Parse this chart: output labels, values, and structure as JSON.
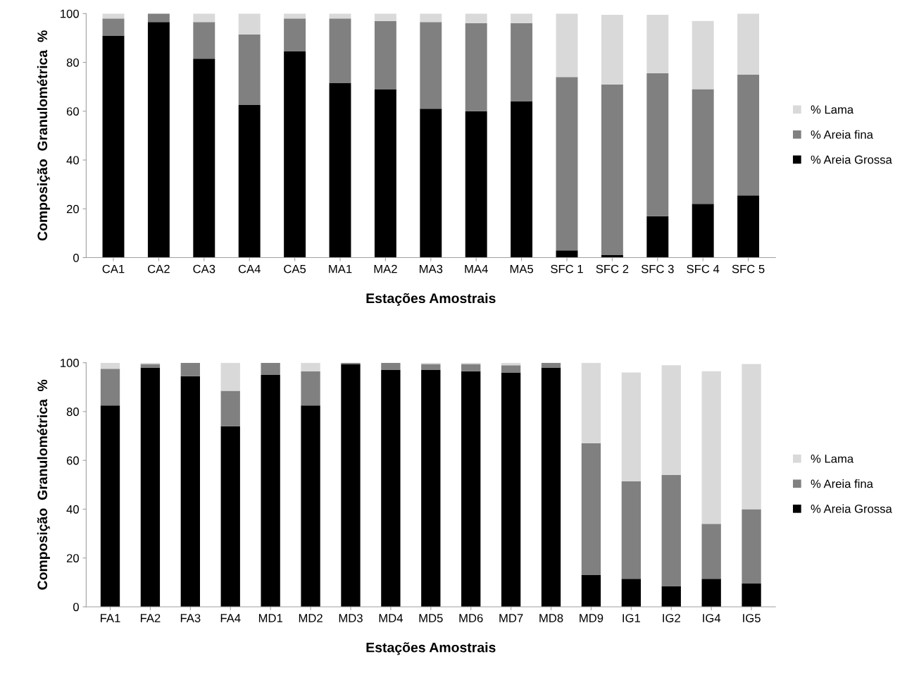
{
  "chart_data": [
    {
      "type": "bar",
      "stacked": true,
      "xlabel": "Estações Amostrais",
      "ylabel": "Composição  Granulométrica  %",
      "categories": [
        "CA1",
        "CA2",
        "CA3",
        "CA4",
        "CA5",
        "MA1",
        "MA2",
        "MA3",
        "MA4",
        "MA5",
        "SFC 1",
        "SFC 2",
        "SFC 3",
        "SFC 4",
        "SFC 5"
      ],
      "ylim": [
        0,
        100
      ],
      "yticks": [
        0,
        20,
        40,
        60,
        80,
        100
      ],
      "grid": false,
      "legend": "right",
      "series": [
        {
          "name": "% Areia Grossa",
          "color": "#000000",
          "values": [
            91,
            96.5,
            81.5,
            62.5,
            84.5,
            71.5,
            69,
            61,
            60,
            64,
            3,
            1,
            17,
            22,
            25.5
          ]
        },
        {
          "name": "% Areia fina",
          "color": "#808080",
          "values": [
            7,
            3.5,
            15,
            29,
            13.5,
            26.5,
            28,
            35.5,
            36,
            32,
            71,
            70,
            58.5,
            47,
            49.5
          ]
        },
        {
          "name": "% Lama",
          "color": "#d9d9d9",
          "values": [
            2,
            0,
            3.5,
            8.5,
            2,
            2,
            3,
            3.5,
            4,
            4,
            26,
            28.5,
            24,
            28,
            25
          ]
        }
      ]
    },
    {
      "type": "bar",
      "stacked": true,
      "xlabel": "Estações Amostrais",
      "ylabel": "Composição  Granulométrica  %",
      "categories": [
        "FA1",
        "FA2",
        "FA3",
        "FA4",
        "MD1",
        "MD2",
        "MD3",
        "MD4",
        "MD5",
        "MD6",
        "MD7",
        "MD8",
        "MD9",
        "IG1",
        "IG2",
        "IG4",
        "IG5"
      ],
      "ylim": [
        0,
        100
      ],
      "yticks": [
        0,
        20,
        40,
        60,
        80,
        100
      ],
      "grid": false,
      "legend": "right",
      "series": [
        {
          "name": "% Areia Grossa",
          "color": "#000000",
          "values": [
            82.5,
            98,
            94.5,
            74,
            95,
            82.5,
            99.5,
            97,
            97,
            96.5,
            96,
            98,
            13,
            11.5,
            8.5,
            11.5,
            9.5
          ]
        },
        {
          "name": "% Areia fina",
          "color": "#808080",
          "values": [
            15,
            1.5,
            5.5,
            14.5,
            5,
            14,
            0.5,
            3,
            2.5,
            3,
            3,
            2,
            54,
            40,
            45.5,
            22.5,
            30.5
          ]
        },
        {
          "name": "% Lama",
          "color": "#d9d9d9",
          "values": [
            2.5,
            0.5,
            0,
            11.5,
            0,
            3.5,
            0,
            0,
            0.5,
            0.5,
            1,
            0,
            33,
            44.5,
            45,
            62.5,
            59.5
          ]
        }
      ]
    }
  ]
}
